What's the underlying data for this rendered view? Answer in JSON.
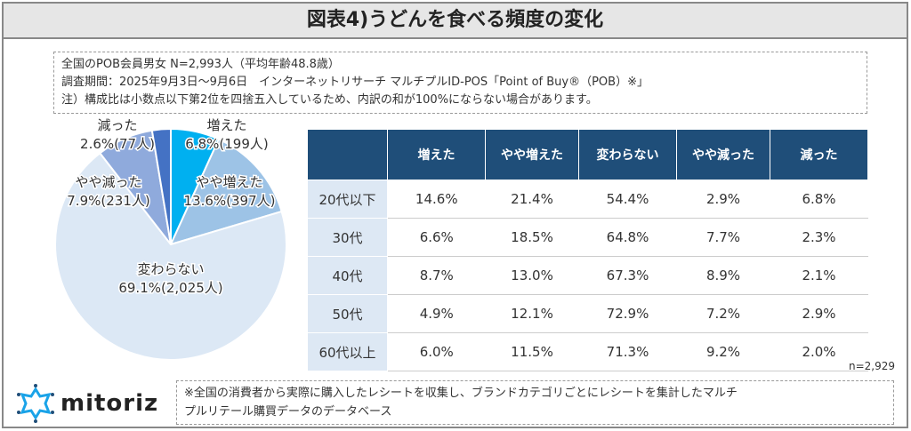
{
  "title": "図表4)うどんを食べる頻度の変化",
  "notes": [
    "全国のPOB会員男女 N=2,993人（平均年齢48.8歳）",
    "調査期間：2025年9月3日〜9月6日　インターネットリサーチ マルチプルID-POS「Point of Buy®（POB）※」",
    "注）構成比は小数点以下第2位を四捨五入しているため、内訳の和が100%にならない場合があります。"
  ],
  "chart_data": [
    {
      "type": "pie",
      "slices": [
        {
          "label": "増えた",
          "value": 6.8,
          "count": "199人",
          "text": "6.8%(199人)",
          "color": "#00b0f0"
        },
        {
          "label": "やや増えた",
          "value": 13.6,
          "count": "397人",
          "text": "13.6%(397人)",
          "color": "#9dc3e6"
        },
        {
          "label": "変わらない",
          "value": 69.1,
          "count": "2,025人",
          "text": "69.1%(2,025人)",
          "color": "#dce8f5"
        },
        {
          "label": "やや減った",
          "value": 7.9,
          "count": "231人",
          "text": "7.9%(231人)",
          "color": "#8faadc"
        },
        {
          "label": "減った",
          "value": 2.6,
          "count": "77人",
          "text": "2.6%(77人)",
          "color": "#4472c4"
        }
      ]
    },
    {
      "type": "table",
      "columns": [
        "",
        "増えた",
        "やや増えた",
        "変わらない",
        "やや減った",
        "減った"
      ],
      "rows": [
        [
          "20代以下",
          "14.6%",
          "21.4%",
          "54.4%",
          "2.9%",
          "6.8%"
        ],
        [
          "30代",
          "6.6%",
          "18.5%",
          "64.8%",
          "7.7%",
          "2.3%"
        ],
        [
          "40代",
          "8.7%",
          "13.0%",
          "67.3%",
          "8.9%",
          "2.1%"
        ],
        [
          "50代",
          "4.9%",
          "12.1%",
          "72.9%",
          "7.2%",
          "2.9%"
        ],
        [
          "60代以上",
          "6.0%",
          "11.5%",
          "71.3%",
          "9.2%",
          "2.0%"
        ]
      ],
      "n": "n=2,929"
    }
  ],
  "logo": "mitoriz",
  "footer": [
    "※全国の消費者から実際に購入したレシートを収集し、ブランドカテゴリごとにレシートを集計したマルチ",
    "プルリテール購買データのデータベース"
  ]
}
